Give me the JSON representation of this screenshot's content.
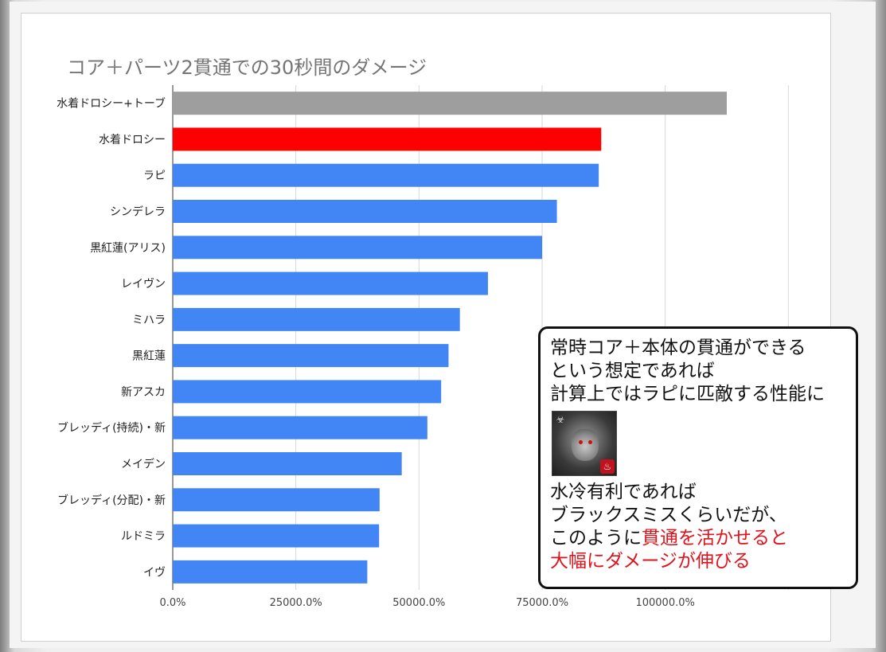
{
  "chart_data": {
    "type": "bar",
    "orientation": "horizontal",
    "title": "コア＋パーツ2貫通での30秒間のダメージ",
    "categories": [
      "水着ドロシー+トーブ",
      "水着ドロシー",
      "ラピ",
      "シンデレラ",
      "黒紅蓮(アリス)",
      "レイヴン",
      "ミハラ",
      "黒紅蓮",
      "新アスカ",
      "ブレッディ(持続)・新",
      "メイデン",
      "ブレッディ(分配)・新",
      "ルドミラ",
      "イヴ"
    ],
    "values": [
      112500,
      87000,
      86500,
      78000,
      75000,
      64000,
      58300,
      56000,
      54500,
      51700,
      46500,
      42000,
      41900,
      39500
    ],
    "bar_colors": [
      "#9e9e9e",
      "#ff0000",
      "#4285f4",
      "#4285f4",
      "#4285f4",
      "#4285f4",
      "#4285f4",
      "#4285f4",
      "#4285f4",
      "#4285f4",
      "#4285f4",
      "#4285f4",
      "#4285f4",
      "#4285f4"
    ],
    "xlim": [
      0,
      125000
    ],
    "xticks": [
      0,
      25000,
      50000,
      75000,
      100000
    ],
    "xtick_labels": [
      "0.0%",
      "25000.0%",
      "50000.0%",
      "75000.0%",
      "100000.0%"
    ],
    "grid": true,
    "xlabel": "",
    "ylabel": ""
  },
  "callout": {
    "lines": [
      "常時コア＋本体の貫通ができる",
      "という想定であれば",
      "計算上ではラピに匹敵する性能に"
    ],
    "avatar_icon": "character-portrait-icon",
    "lines2_line1": "水冷有利であれば",
    "lines2_line2": "ブラックスミスくらいだが、",
    "lines2_line3_prefix": "このように",
    "lines2_line3_red": "貫通を活かせると",
    "lines2_line4_red": "大幅にダメージが伸びる",
    "highlight_color": "#e0121b"
  }
}
